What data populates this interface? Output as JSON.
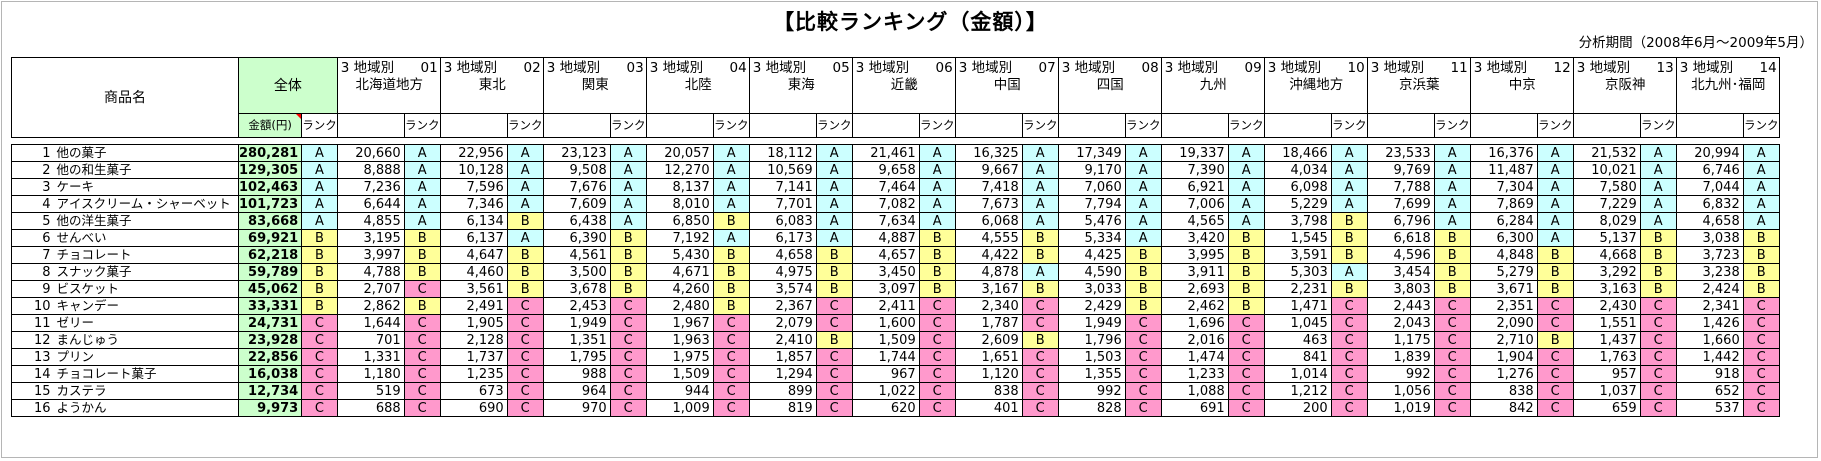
{
  "title": "【比較ランキング（金額）】",
  "period": "分析期間（2008年6月〜2009年5月）",
  "header": {
    "product_name": "商品名",
    "total_label": "全体",
    "amount_label": "金額(円)",
    "rank_label": "ランク",
    "regions": [
      {
        "prefix": "3 地域別",
        "code": "01",
        "name": "北海道地方"
      },
      {
        "prefix": "3 地域別",
        "code": "02",
        "name": "東北"
      },
      {
        "prefix": "3 地域別",
        "code": "03",
        "name": "関東"
      },
      {
        "prefix": "3 地域別",
        "code": "04",
        "name": "北陸"
      },
      {
        "prefix": "3 地域別",
        "code": "05",
        "name": "東海"
      },
      {
        "prefix": "3 地域別",
        "code": "06",
        "name": "近畿"
      },
      {
        "prefix": "3 地域別",
        "code": "07",
        "name": "中国"
      },
      {
        "prefix": "3 地域別",
        "code": "08",
        "name": "四国"
      },
      {
        "prefix": "3 地域別",
        "code": "09",
        "name": "九州"
      },
      {
        "prefix": "3 地域別",
        "code": "10",
        "name": "沖縄地方"
      },
      {
        "prefix": "3 地域別",
        "code": "11",
        "name": "京浜葉"
      },
      {
        "prefix": "3 地域別",
        "code": "12",
        "name": "中京"
      },
      {
        "prefix": "3 地域別",
        "code": "13",
        "name": "京阪神"
      },
      {
        "prefix": "3 地域別",
        "code": "14",
        "name": "北九州･福岡"
      }
    ]
  },
  "rows": [
    {
      "no": "1",
      "name": "他の菓子",
      "total": "280,281",
      "trank": "A",
      "cells": [
        [
          "20,660",
          "A"
        ],
        [
          "22,956",
          "A"
        ],
        [
          "23,123",
          "A"
        ],
        [
          "20,057",
          "A"
        ],
        [
          "18,112",
          "A"
        ],
        [
          "21,461",
          "A"
        ],
        [
          "16,325",
          "A"
        ],
        [
          "17,349",
          "A"
        ],
        [
          "19,337",
          "A"
        ],
        [
          "18,466",
          "A"
        ],
        [
          "23,533",
          "A"
        ],
        [
          "16,376",
          "A"
        ],
        [
          "21,532",
          "A"
        ],
        [
          "20,994",
          "A"
        ]
      ]
    },
    {
      "no": "2",
      "name": "他の和生菓子",
      "total": "129,305",
      "trank": "A",
      "cells": [
        [
          "8,888",
          "A"
        ],
        [
          "10,128",
          "A"
        ],
        [
          "9,508",
          "A"
        ],
        [
          "12,270",
          "A"
        ],
        [
          "10,569",
          "A"
        ],
        [
          "9,658",
          "A"
        ],
        [
          "9,667",
          "A"
        ],
        [
          "9,170",
          "A"
        ],
        [
          "7,390",
          "A"
        ],
        [
          "4,034",
          "A"
        ],
        [
          "9,769",
          "A"
        ],
        [
          "11,487",
          "A"
        ],
        [
          "10,021",
          "A"
        ],
        [
          "6,746",
          "A"
        ]
      ]
    },
    {
      "no": "3",
      "name": "ケーキ",
      "total": "102,463",
      "trank": "A",
      "cells": [
        [
          "7,236",
          "A"
        ],
        [
          "7,596",
          "A"
        ],
        [
          "7,676",
          "A"
        ],
        [
          "8,137",
          "A"
        ],
        [
          "7,141",
          "A"
        ],
        [
          "7,464",
          "A"
        ],
        [
          "7,418",
          "A"
        ],
        [
          "7,060",
          "A"
        ],
        [
          "6,921",
          "A"
        ],
        [
          "6,098",
          "A"
        ],
        [
          "7,788",
          "A"
        ],
        [
          "7,304",
          "A"
        ],
        [
          "7,580",
          "A"
        ],
        [
          "7,044",
          "A"
        ]
      ]
    },
    {
      "no": "4",
      "name": "アイスクリーム・シャーベット",
      "total": "101,723",
      "trank": "A",
      "cells": [
        [
          "6,644",
          "A"
        ],
        [
          "7,346",
          "A"
        ],
        [
          "7,609",
          "A"
        ],
        [
          "8,010",
          "A"
        ],
        [
          "7,701",
          "A"
        ],
        [
          "7,082",
          "A"
        ],
        [
          "7,673",
          "A"
        ],
        [
          "7,794",
          "A"
        ],
        [
          "7,006",
          "A"
        ],
        [
          "5,229",
          "A"
        ],
        [
          "7,699",
          "A"
        ],
        [
          "7,869",
          "A"
        ],
        [
          "7,229",
          "A"
        ],
        [
          "6,832",
          "A"
        ]
      ]
    },
    {
      "no": "5",
      "name": "他の洋生菓子",
      "total": "83,668",
      "trank": "A",
      "cells": [
        [
          "4,855",
          "A"
        ],
        [
          "6,134",
          "B"
        ],
        [
          "6,438",
          "A"
        ],
        [
          "6,850",
          "B"
        ],
        [
          "6,083",
          "A"
        ],
        [
          "7,634",
          "A"
        ],
        [
          "6,068",
          "A"
        ],
        [
          "5,476",
          "A"
        ],
        [
          "4,565",
          "A"
        ],
        [
          "3,798",
          "B"
        ],
        [
          "6,796",
          "A"
        ],
        [
          "6,284",
          "A"
        ],
        [
          "8,029",
          "A"
        ],
        [
          "4,658",
          "A"
        ]
      ]
    },
    {
      "no": "6",
      "name": "せんべい",
      "total": "69,921",
      "trank": "B",
      "cells": [
        [
          "3,195",
          "B"
        ],
        [
          "6,137",
          "A"
        ],
        [
          "6,390",
          "B"
        ],
        [
          "7,192",
          "A"
        ],
        [
          "6,173",
          "A"
        ],
        [
          "4,887",
          "B"
        ],
        [
          "4,555",
          "B"
        ],
        [
          "5,334",
          "A"
        ],
        [
          "3,420",
          "B"
        ],
        [
          "1,545",
          "B"
        ],
        [
          "6,618",
          "B"
        ],
        [
          "6,300",
          "A"
        ],
        [
          "5,137",
          "B"
        ],
        [
          "3,038",
          "B"
        ]
      ]
    },
    {
      "no": "7",
      "name": "チョコレート",
      "total": "62,218",
      "trank": "B",
      "cells": [
        [
          "3,997",
          "B"
        ],
        [
          "4,647",
          "B"
        ],
        [
          "4,561",
          "B"
        ],
        [
          "5,430",
          "B"
        ],
        [
          "4,658",
          "B"
        ],
        [
          "4,657",
          "B"
        ],
        [
          "4,422",
          "B"
        ],
        [
          "4,425",
          "B"
        ],
        [
          "3,995",
          "B"
        ],
        [
          "3,591",
          "B"
        ],
        [
          "4,596",
          "B"
        ],
        [
          "4,848",
          "B"
        ],
        [
          "4,668",
          "B"
        ],
        [
          "3,723",
          "B"
        ]
      ]
    },
    {
      "no": "8",
      "name": "スナック菓子",
      "total": "59,789",
      "trank": "B",
      "cells": [
        [
          "4,788",
          "B"
        ],
        [
          "4,460",
          "B"
        ],
        [
          "3,500",
          "B"
        ],
        [
          "4,671",
          "B"
        ],
        [
          "4,975",
          "B"
        ],
        [
          "3,450",
          "B"
        ],
        [
          "4,878",
          "A"
        ],
        [
          "4,590",
          "B"
        ],
        [
          "3,911",
          "B"
        ],
        [
          "5,303",
          "A"
        ],
        [
          "3,454",
          "B"
        ],
        [
          "5,279",
          "B"
        ],
        [
          "3,292",
          "B"
        ],
        [
          "3,238",
          "B"
        ]
      ]
    },
    {
      "no": "9",
      "name": "ビスケット",
      "total": "45,062",
      "trank": "B",
      "cells": [
        [
          "2,707",
          "C"
        ],
        [
          "3,561",
          "B"
        ],
        [
          "3,678",
          "B"
        ],
        [
          "4,260",
          "B"
        ],
        [
          "3,574",
          "B"
        ],
        [
          "3,097",
          "B"
        ],
        [
          "3,167",
          "B"
        ],
        [
          "3,033",
          "B"
        ],
        [
          "2,693",
          "B"
        ],
        [
          "2,231",
          "B"
        ],
        [
          "3,803",
          "B"
        ],
        [
          "3,671",
          "B"
        ],
        [
          "3,163",
          "B"
        ],
        [
          "2,424",
          "B"
        ]
      ]
    },
    {
      "no": "10",
      "name": "キャンデー",
      "total": "33,331",
      "trank": "B",
      "cells": [
        [
          "2,862",
          "B"
        ],
        [
          "2,491",
          "C"
        ],
        [
          "2,453",
          "C"
        ],
        [
          "2,480",
          "B"
        ],
        [
          "2,367",
          "C"
        ],
        [
          "2,411",
          "C"
        ],
        [
          "2,340",
          "C"
        ],
        [
          "2,429",
          "B"
        ],
        [
          "2,462",
          "B"
        ],
        [
          "1,471",
          "C"
        ],
        [
          "2,443",
          "C"
        ],
        [
          "2,351",
          "C"
        ],
        [
          "2,430",
          "C"
        ],
        [
          "2,341",
          "C"
        ]
      ]
    },
    {
      "no": "11",
      "name": "ゼリー",
      "total": "24,731",
      "trank": "C",
      "cells": [
        [
          "1,644",
          "C"
        ],
        [
          "1,905",
          "C"
        ],
        [
          "1,949",
          "C"
        ],
        [
          "1,967",
          "C"
        ],
        [
          "2,079",
          "C"
        ],
        [
          "1,600",
          "C"
        ],
        [
          "1,787",
          "C"
        ],
        [
          "1,949",
          "C"
        ],
        [
          "1,696",
          "C"
        ],
        [
          "1,045",
          "C"
        ],
        [
          "2,043",
          "C"
        ],
        [
          "2,090",
          "C"
        ],
        [
          "1,551",
          "C"
        ],
        [
          "1,426",
          "C"
        ]
      ]
    },
    {
      "no": "12",
      "name": "まんじゅう",
      "total": "23,928",
      "trank": "C",
      "cells": [
        [
          "701",
          "C"
        ],
        [
          "2,128",
          "C"
        ],
        [
          "1,351",
          "C"
        ],
        [
          "1,963",
          "C"
        ],
        [
          "2,410",
          "B"
        ],
        [
          "1,509",
          "C"
        ],
        [
          "2,609",
          "B"
        ],
        [
          "1,796",
          "C"
        ],
        [
          "2,016",
          "C"
        ],
        [
          "463",
          "C"
        ],
        [
          "1,175",
          "C"
        ],
        [
          "2,710",
          "B"
        ],
        [
          "1,437",
          "C"
        ],
        [
          "1,660",
          "C"
        ]
      ]
    },
    {
      "no": "13",
      "name": "プリン",
      "total": "22,856",
      "trank": "C",
      "cells": [
        [
          "1,331",
          "C"
        ],
        [
          "1,737",
          "C"
        ],
        [
          "1,795",
          "C"
        ],
        [
          "1,975",
          "C"
        ],
        [
          "1,857",
          "C"
        ],
        [
          "1,744",
          "C"
        ],
        [
          "1,651",
          "C"
        ],
        [
          "1,503",
          "C"
        ],
        [
          "1,474",
          "C"
        ],
        [
          "841",
          "C"
        ],
        [
          "1,839",
          "C"
        ],
        [
          "1,904",
          "C"
        ],
        [
          "1,763",
          "C"
        ],
        [
          "1,442",
          "C"
        ]
      ]
    },
    {
      "no": "14",
      "name": "チョコレート菓子",
      "total": "16,038",
      "trank": "C",
      "cells": [
        [
          "1,180",
          "C"
        ],
        [
          "1,235",
          "C"
        ],
        [
          "988",
          "C"
        ],
        [
          "1,509",
          "C"
        ],
        [
          "1,294",
          "C"
        ],
        [
          "967",
          "C"
        ],
        [
          "1,120",
          "C"
        ],
        [
          "1,355",
          "C"
        ],
        [
          "1,233",
          "C"
        ],
        [
          "1,014",
          "C"
        ],
        [
          "992",
          "C"
        ],
        [
          "1,276",
          "C"
        ],
        [
          "957",
          "C"
        ],
        [
          "918",
          "C"
        ]
      ]
    },
    {
      "no": "15",
      "name": "カステラ",
      "total": "12,734",
      "trank": "C",
      "cells": [
        [
          "519",
          "C"
        ],
        [
          "673",
          "C"
        ],
        [
          "964",
          "C"
        ],
        [
          "944",
          "C"
        ],
        [
          "899",
          "C"
        ],
        [
          "1,022",
          "C"
        ],
        [
          "838",
          "C"
        ],
        [
          "992",
          "C"
        ],
        [
          "1,088",
          "C"
        ],
        [
          "1,212",
          "C"
        ],
        [
          "1,056",
          "C"
        ],
        [
          "838",
          "C"
        ],
        [
          "1,037",
          "C"
        ],
        [
          "652",
          "C"
        ]
      ]
    },
    {
      "no": "16",
      "name": "ようかん",
      "total": "9,973",
      "trank": "C",
      "cells": [
        [
          "688",
          "C"
        ],
        [
          "690",
          "C"
        ],
        [
          "970",
          "C"
        ],
        [
          "1,009",
          "C"
        ],
        [
          "819",
          "C"
        ],
        [
          "620",
          "C"
        ],
        [
          "401",
          "C"
        ],
        [
          "828",
          "C"
        ],
        [
          "691",
          "C"
        ],
        [
          "200",
          "C"
        ],
        [
          "1,019",
          "C"
        ],
        [
          "842",
          "C"
        ],
        [
          "659",
          "C"
        ],
        [
          "537",
          "C"
        ]
      ]
    }
  ]
}
